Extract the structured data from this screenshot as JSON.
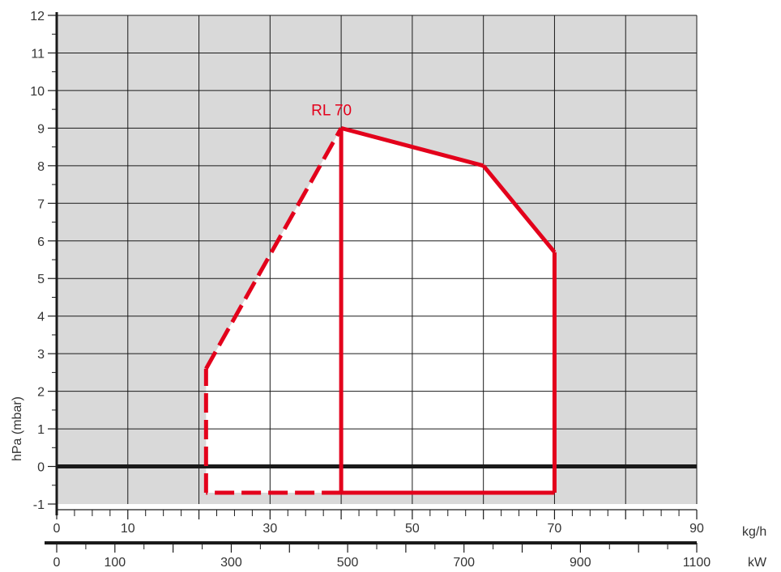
{
  "chart_data": {
    "type": "line",
    "title": "",
    "ylabel": "hPa (mbar)",
    "ylim": [
      -1,
      12
    ],
    "yticks": [
      "-1",
      "0",
      "1",
      "2",
      "3",
      "4",
      "5",
      "6",
      "7",
      "8",
      "9",
      "10",
      "11",
      "12"
    ],
    "grid": true,
    "background_color": "#d9d9d9",
    "axes": {
      "kgh": {
        "label": "kg/h",
        "range": [
          0,
          90
        ],
        "tick_labels": [
          "0",
          "10",
          "30",
          "50",
          "70",
          "90"
        ],
        "tick_values": [
          0,
          10,
          30,
          50,
          70,
          90
        ]
      },
      "kw": {
        "label": "kW",
        "range": [
          0,
          1100
        ],
        "tick_labels": [
          "0",
          "100",
          "300",
          "500",
          "700",
          "900",
          "1100"
        ],
        "tick_values": [
          0,
          100,
          300,
          500,
          700,
          900,
          1100
        ]
      }
    },
    "series": [
      {
        "name": "RL 70",
        "color": "#e3001b",
        "points_kgh_hpa": [
          [
            21,
            -0.7
          ],
          [
            21,
            2.6
          ],
          [
            40,
            9
          ],
          [
            60,
            8
          ],
          [
            70,
            5.7
          ],
          [
            70,
            -0.7
          ],
          [
            40,
            -0.7
          ],
          [
            21,
            -0.7
          ]
        ],
        "start_line_kgh": 40,
        "dashed_segments": "from 21 kg/h to 40 kg/h"
      }
    ]
  }
}
